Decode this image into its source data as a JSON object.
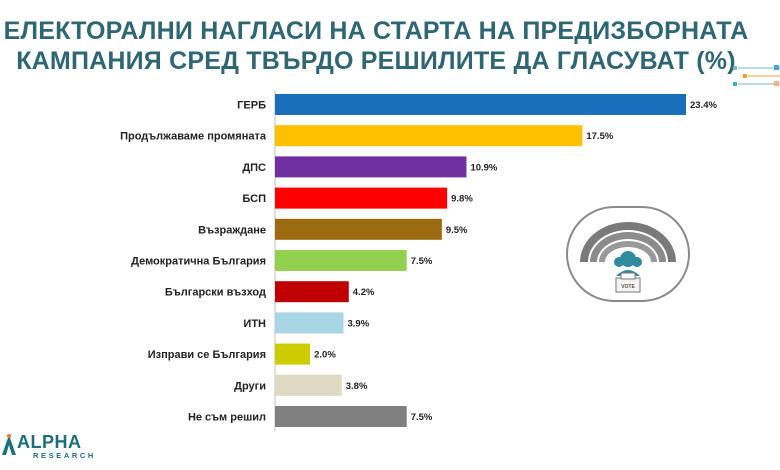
{
  "header": {
    "title_line1": "ЕЛЕКТОРАЛНИ НАГЛАСИ НА СТАРТА НА ПРЕДИЗБОРНАТА",
    "title_line2": "КАМПАНИЯ СРЕД ТВЪРДО РЕШИЛИТЕ ДА ГЛАСУВАТ (%)"
  },
  "colors": {
    "title": "#2f6673",
    "logo": "#1c6e7a",
    "bars": [
      "#1a6fba",
      "#ffc000",
      "#7030a0",
      "#ff0000",
      "#9c6a10",
      "#92d050",
      "#c00000",
      "#a8d6e4",
      "#cccc00",
      "#ddd9c3",
      "#808080"
    ]
  },
  "icons": {
    "decoration": "connector-lines-icon",
    "vote": "parliament-ballot-box-icon"
  },
  "logo": {
    "main": "ALPHA",
    "sub": "RESEARCH"
  },
  "chart_data": {
    "type": "bar",
    "orientation": "horizontal",
    "title": "ЕЛЕКТОРАЛНИ НАГЛАСИ НА СТАРТА НА ПРЕДИЗБОРНАТА КАМПАНИЯ СРЕД ТВЪРДО РЕШИЛИТЕ ДА ГЛАСУВАТ (%)",
    "xlabel": "",
    "ylabel": "",
    "xlim": [
      0,
      23.4
    ],
    "grid": false,
    "categories": [
      "ГЕРБ",
      "Продължаваме промяната",
      "ДПС",
      "БСП",
      "Възраждане",
      "Демократична България",
      "Български възход",
      "ИТН",
      "Изправи се България",
      "Други",
      "Не съм решил"
    ],
    "values": [
      23.4,
      17.5,
      10.9,
      9.8,
      9.5,
      7.5,
      4.2,
      3.9,
      2.0,
      3.8,
      7.5
    ],
    "value_labels": [
      "23.4%",
      "17.5%",
      "10.9%",
      "9.8%",
      "9.5%",
      "7.5%",
      "4.2%",
      "3.9%",
      "2.0%",
      "3.8%",
      "7.5%"
    ]
  }
}
